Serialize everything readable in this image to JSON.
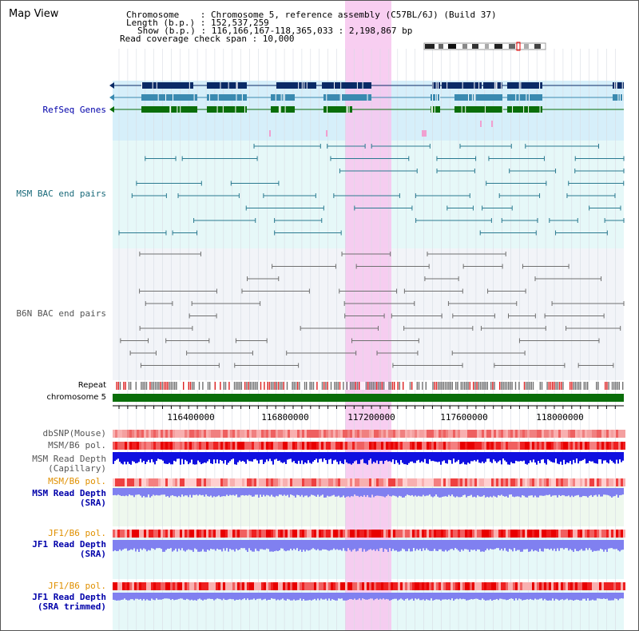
{
  "title": "Map View",
  "info": {
    "chromosome_line": "Chromosome    : Chromosome 5, reference assembly (C57BL/6J) (Build 37)",
    "length_line": "Length (b.p.) : 152,537,259",
    "show_line": "Show (b.p.) : 116,166,167-118,365,033 : 2,198,867 bp",
    "coverage_line": "Read coverage check span : 10,000"
  },
  "tracks": {
    "refseq": "RefSeq Genes",
    "msm_bac": "MSM BAC end pairs",
    "b6n_bac": "B6N BAC end pairs",
    "repeat": "Repeat",
    "chromosome": "chromosome 5",
    "dbsnp": "dbSNP(Mouse)",
    "msm_b6_pol": "MSM/B6 pol.",
    "msm_read_depth": "MSM Read Depth",
    "capillary": "(Capillary)",
    "msm_b6_pol2": "MSM/B6 pol.",
    "msm_read_depth2": "MSM Read Depth",
    "sra": "(SRA)",
    "jf1_b6_pol": "JF1/B6 pol.",
    "jf1_read_depth": "JF1 Read Depth",
    "sra2": "(SRA)",
    "jf1_b6_pol2": "JF1/B6 pol.",
    "jf1_read_depth2": "JF1 Read Depth",
    "sra_trimmed": "(SRA trimmed)"
  },
  "axis": {
    "ticks": [
      "116400000",
      "116800000",
      "117200000",
      "117600000",
      "118000000"
    ]
  },
  "colors": {
    "highlight": "#f7c6ef",
    "refseq_bg": "#d6effa",
    "msm_bac_bg": "#e6f8f8",
    "b6n_bg": "#f2f4f8",
    "gene_navy": "#0a2a66",
    "gene_teal": "#3a8ab0",
    "gene_green": "#0a6e0a",
    "chromosome_bar": "#0a6e0a",
    "label_blue": "#0000aa",
    "label_teal": "#1a6a7a",
    "label_gray": "#555555",
    "label_orange": "#e09000",
    "depth_blue": "#1010e0",
    "depth_lavender": "#8080f0"
  }
}
